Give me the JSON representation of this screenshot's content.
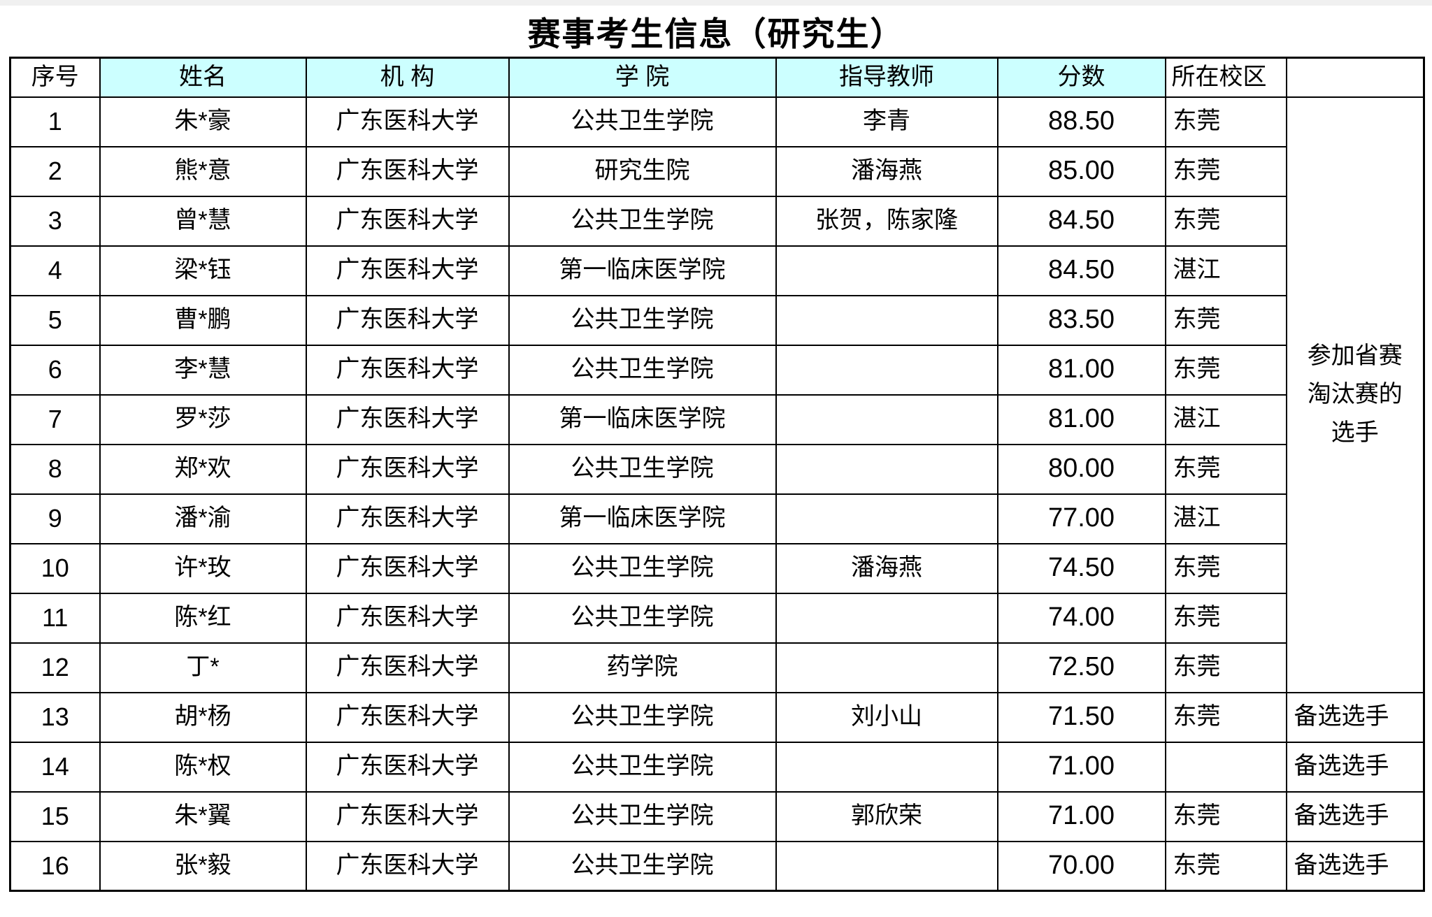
{
  "title": "赛事考生信息（研究生）",
  "colors": {
    "header_highlight_bg": "#CCFFFF",
    "border": "#000000",
    "text": "#000000",
    "page_bg": "#FFFFFF"
  },
  "table": {
    "headers": [
      "序号",
      "姓名",
      "机 构",
      "学 院",
      "指导教师",
      "分数",
      "所在校区",
      ""
    ],
    "group_note": "参加省赛\n淘汰赛的\n选手",
    "group_note_row_span": 12,
    "rows": [
      {
        "no": "1",
        "name": "朱*豪",
        "org": "广东医科大学",
        "college": "公共卫生学院",
        "teacher": "李青",
        "score": "88.50",
        "campus": "东莞",
        "note": ""
      },
      {
        "no": "2",
        "name": "熊*意",
        "org": "广东医科大学",
        "college": "研究生院",
        "teacher": "潘海燕",
        "score": "85.00",
        "campus": "东莞",
        "note": ""
      },
      {
        "no": "3",
        "name": "曾*慧",
        "org": "广东医科大学",
        "college": "公共卫生学院",
        "teacher": "张贺，陈家隆",
        "score": "84.50",
        "campus": "东莞",
        "note": ""
      },
      {
        "no": "4",
        "name": "梁*钰",
        "org": "广东医科大学",
        "college": "第一临床医学院",
        "teacher": "",
        "score": "84.50",
        "campus": "湛江",
        "note": ""
      },
      {
        "no": "5",
        "name": "曹*鹏",
        "org": "广东医科大学",
        "college": "公共卫生学院",
        "teacher": "",
        "score": "83.50",
        "campus": "东莞",
        "note": ""
      },
      {
        "no": "6",
        "name": "李*慧",
        "org": "广东医科大学",
        "college": "公共卫生学院",
        "teacher": "",
        "score": "81.00",
        "campus": "东莞",
        "note": ""
      },
      {
        "no": "7",
        "name": "罗*莎",
        "org": "广东医科大学",
        "college": "第一临床医学院",
        "teacher": "",
        "score": "81.00",
        "campus": "湛江",
        "note": ""
      },
      {
        "no": "8",
        "name": "郑*欢",
        "org": "广东医科大学",
        "college": "公共卫生学院",
        "teacher": "",
        "score": "80.00",
        "campus": "东莞",
        "note": ""
      },
      {
        "no": "9",
        "name": "潘*渝",
        "org": "广东医科大学",
        "college": "第一临床医学院",
        "teacher": "",
        "score": "77.00",
        "campus": "湛江",
        "note": ""
      },
      {
        "no": "10",
        "name": "许*玫",
        "org": "广东医科大学",
        "college": "公共卫生学院",
        "teacher": "潘海燕",
        "score": "74.50",
        "campus": "东莞",
        "note": ""
      },
      {
        "no": "11",
        "name": "陈*红",
        "org": "广东医科大学",
        "college": "公共卫生学院",
        "teacher": "",
        "score": "74.00",
        "campus": "东莞",
        "note": ""
      },
      {
        "no": "12",
        "name": "丁*",
        "org": "广东医科大学",
        "college": "药学院",
        "teacher": "",
        "score": "72.50",
        "campus": "东莞",
        "note": ""
      },
      {
        "no": "13",
        "name": "胡*杨",
        "org": "广东医科大学",
        "college": "公共卫生学院",
        "teacher": "刘小山",
        "score": "71.50",
        "campus": "东莞",
        "note": "备选选手"
      },
      {
        "no": "14",
        "name": "陈*权",
        "org": "广东医科大学",
        "college": "公共卫生学院",
        "teacher": "",
        "score": "71.00",
        "campus": "",
        "note": "备选选手"
      },
      {
        "no": "15",
        "name": "朱*翼",
        "org": "广东医科大学",
        "college": "公共卫生学院",
        "teacher": "郭欣荣",
        "score": "71.00",
        "campus": "东莞",
        "note": "备选选手"
      },
      {
        "no": "16",
        "name": "张*毅",
        "org": "广东医科大学",
        "college": "公共卫生学院",
        "teacher": "",
        "score": "70.00",
        "campus": "东莞",
        "note": "备选选手"
      }
    ]
  }
}
